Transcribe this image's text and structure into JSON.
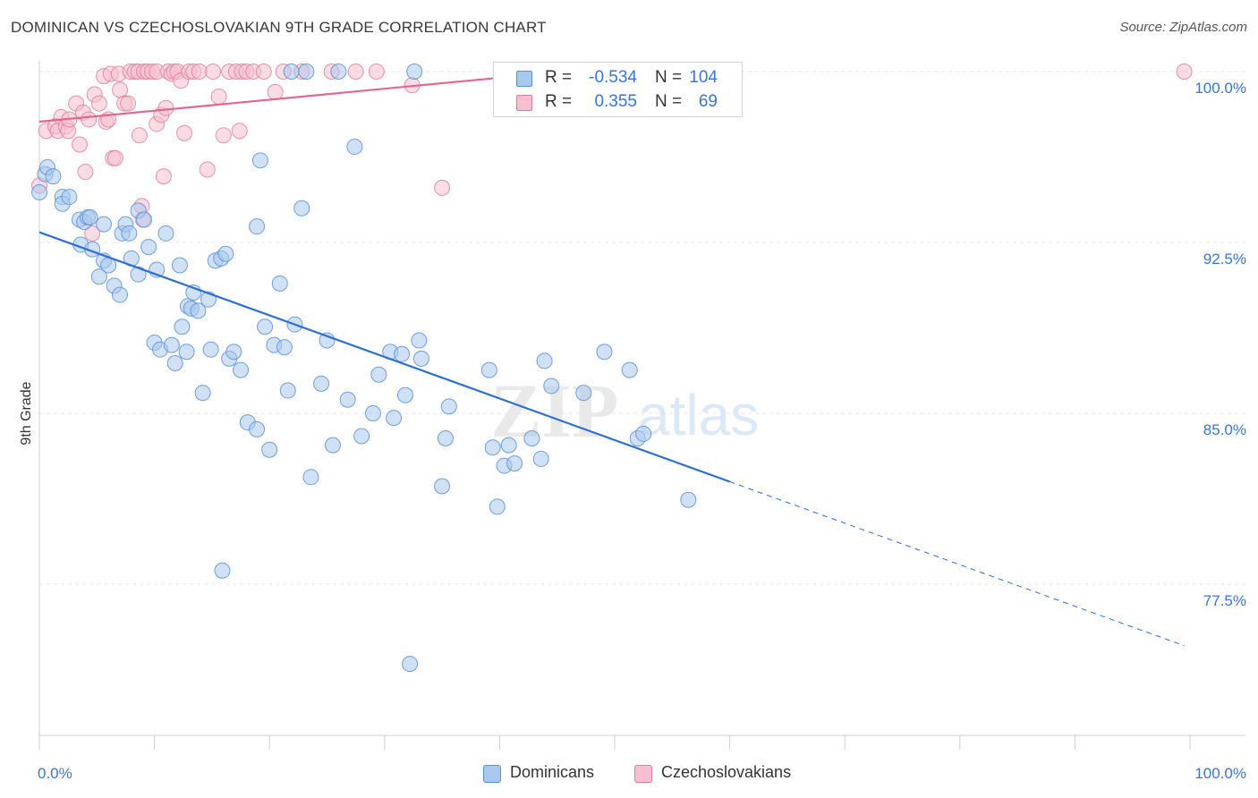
{
  "title": "DOMINICAN VS CZECHOSLOVAKIAN 9TH GRADE CORRELATION CHART",
  "source": "Source: ZipAtlas.com",
  "watermark": {
    "zip": "ZIP",
    "atlas": "atlas"
  },
  "legend": {
    "rows": [
      {
        "r_label": "R =",
        "r_value": "-0.534",
        "n_label": "N =",
        "n_value": "104",
        "color": "#aac8ee",
        "border": "#5a8fd8"
      },
      {
        "r_label": "R =",
        "r_value": "0.355",
        "n_label": "N =",
        "n_value": "69",
        "color": "#f7bfd0",
        "border": "#e07a9a"
      }
    ]
  },
  "bottom_legend": [
    {
      "label": "Dominicans",
      "color": "#aac8ee",
      "border": "#5a8fd8"
    },
    {
      "label": "Czechoslovakians",
      "color": "#f7bfd0",
      "border": "#e07a9a"
    }
  ],
  "chart_data": {
    "type": "scatter",
    "title": "DOMINICAN VS CZECHOSLOVAKIAN 9TH GRADE CORRELATION CHART",
    "xlabel": "",
    "ylabel": "9th Grade",
    "xlim": [
      0,
      100
    ],
    "ylim": [
      70.5,
      101
    ],
    "x_tick_labels": [
      "0.0%",
      "100.0%"
    ],
    "y_ticks": [
      100.0,
      92.5,
      85.0,
      77.5
    ],
    "y_tick_labels": [
      "100.0%",
      "92.5%",
      "85.0%",
      "77.5%"
    ],
    "grid": true,
    "legend_position": "top-center",
    "series": [
      {
        "name": "Dominicans",
        "color": "#5a8fd8",
        "fill": "#aac8ee",
        "trend": {
          "x0": 0,
          "y0": 92.95,
          "x1": 60,
          "y1": 82.0,
          "dash_to_x": 99.5,
          "dash_to_y": 74.8
        },
        "points": [
          [
            0,
            94.7
          ],
          [
            0.5,
            95.5
          ],
          [
            0.7,
            95.8
          ],
          [
            1.2,
            95.4
          ],
          [
            2,
            94.5
          ],
          [
            2,
            94.2
          ],
          [
            2.6,
            94.5
          ],
          [
            3.5,
            93.5
          ],
          [
            3.9,
            93.4
          ],
          [
            4.2,
            93.6
          ],
          [
            4.4,
            93.6
          ],
          [
            5.6,
            93.3
          ],
          [
            3.6,
            92.4
          ],
          [
            4.6,
            92.2
          ],
          [
            5.6,
            91.7
          ],
          [
            6,
            91.5
          ],
          [
            5.2,
            91.0
          ],
          [
            6.5,
            90.6
          ],
          [
            7,
            90.2
          ],
          [
            7.2,
            92.9
          ],
          [
            7.5,
            93.3
          ],
          [
            7.8,
            92.9
          ],
          [
            8,
            91.8
          ],
          [
            8.6,
            93.9
          ],
          [
            8.6,
            91.1
          ],
          [
            9.1,
            93.5
          ],
          [
            9.5,
            92.3
          ],
          [
            10,
            88.1
          ],
          [
            10.2,
            91.3
          ],
          [
            10.5,
            87.8
          ],
          [
            11,
            92.9
          ],
          [
            11.5,
            88.0
          ],
          [
            11.8,
            87.2
          ],
          [
            12.4,
            88.8
          ],
          [
            12.8,
            87.7
          ],
          [
            12.2,
            91.5
          ],
          [
            12.9,
            89.7
          ],
          [
            13.2,
            89.6
          ],
          [
            13.4,
            90.3
          ],
          [
            13.8,
            89.5
          ],
          [
            14.2,
            85.9
          ],
          [
            14.7,
            90.0
          ],
          [
            14.9,
            87.8
          ],
          [
            15.3,
            91.7
          ],
          [
            15.8,
            91.8
          ],
          [
            16.2,
            92.0
          ],
          [
            16.5,
            87.4
          ],
          [
            16.9,
            87.7
          ],
          [
            17.5,
            86.9
          ],
          [
            18.1,
            84.6
          ],
          [
            18.9,
            84.3
          ],
          [
            18.9,
            93.2
          ],
          [
            19.2,
            96.1
          ],
          [
            19.6,
            88.8
          ],
          [
            20,
            83.4
          ],
          [
            20.4,
            88.0
          ],
          [
            20.9,
            90.7
          ],
          [
            21.3,
            87.9
          ],
          [
            21.6,
            86.0
          ],
          [
            22.2,
            88.9
          ],
          [
            21.9,
            100.0
          ],
          [
            22.8,
            94.0
          ],
          [
            23.2,
            100.0
          ],
          [
            23.6,
            82.2
          ],
          [
            24.5,
            86.3
          ],
          [
            25,
            88.2
          ],
          [
            25.5,
            83.6
          ],
          [
            26,
            100.0
          ],
          [
            26.8,
            85.6
          ],
          [
            27.4,
            96.7
          ],
          [
            28,
            84.0
          ],
          [
            29,
            85.0
          ],
          [
            29.5,
            86.7
          ],
          [
            30.5,
            87.7
          ],
          [
            30.8,
            84.8
          ],
          [
            31.5,
            87.6
          ],
          [
            31.8,
            85.8
          ],
          [
            32.2,
            74.0
          ],
          [
            32.6,
            100.0
          ],
          [
            33,
            88.2
          ],
          [
            33.2,
            87.4
          ],
          [
            35,
            81.8
          ],
          [
            35.3,
            83.9
          ],
          [
            35.6,
            85.3
          ],
          [
            39.1,
            86.9
          ],
          [
            39.4,
            83.5
          ],
          [
            39.8,
            80.9
          ],
          [
            40.4,
            82.7
          ],
          [
            40.8,
            83.6
          ],
          [
            41.3,
            82.8
          ],
          [
            42.8,
            83.9
          ],
          [
            43.6,
            83.0
          ],
          [
            43.9,
            87.3
          ],
          [
            44.5,
            86.2
          ],
          [
            45.3,
            100.0
          ],
          [
            47.3,
            85.9
          ],
          [
            49.1,
            87.7
          ],
          [
            51.3,
            86.9
          ],
          [
            52,
            83.9
          ],
          [
            52.5,
            84.1
          ],
          [
            56.4,
            81.2
          ],
          [
            15.9,
            78.1
          ],
          [
            46,
            100.0
          ],
          [
            44,
            100.0
          ]
        ]
      },
      {
        "name": "Czechoslovakians",
        "color": "#e07a9a",
        "fill": "#f7bfd0",
        "trend": {
          "x0": 0,
          "y0": 97.8,
          "x1": 43.5,
          "y1": 99.9
        },
        "points": [
          [
            0,
            95.0
          ],
          [
            0.6,
            97.4
          ],
          [
            1.4,
            97.6
          ],
          [
            1.6,
            97.4
          ],
          [
            1.9,
            98.0
          ],
          [
            2.3,
            97.6
          ],
          [
            2.5,
            97.4
          ],
          [
            2.6,
            97.9
          ],
          [
            3.2,
            98.6
          ],
          [
            3.5,
            96.8
          ],
          [
            3.8,
            98.2
          ],
          [
            4,
            95.6
          ],
          [
            4.3,
            97.9
          ],
          [
            4.6,
            92.9
          ],
          [
            4.8,
            99.0
          ],
          [
            5.2,
            98.6
          ],
          [
            5.6,
            99.8
          ],
          [
            5.8,
            97.8
          ],
          [
            6,
            97.9
          ],
          [
            6.2,
            99.9
          ],
          [
            6.4,
            96.2
          ],
          [
            6.6,
            96.2
          ],
          [
            6.9,
            99.9
          ],
          [
            7,
            99.2
          ],
          [
            7.4,
            98.6
          ],
          [
            7.7,
            98.6
          ],
          [
            7.9,
            100.0
          ],
          [
            8.3,
            100.0
          ],
          [
            8.6,
            100.0
          ],
          [
            8.7,
            97.2
          ],
          [
            8.9,
            94.1
          ],
          [
            9,
            93.5
          ],
          [
            9.1,
            100.0
          ],
          [
            9.4,
            100.0
          ],
          [
            9.8,
            100.0
          ],
          [
            10.2,
            100.0
          ],
          [
            10.2,
            97.7
          ],
          [
            10.6,
            98.1
          ],
          [
            10.8,
            95.4
          ],
          [
            11,
            98.4
          ],
          [
            11.2,
            100.0
          ],
          [
            11.5,
            99.9
          ],
          [
            11.7,
            100.0
          ],
          [
            12,
            100.0
          ],
          [
            12.3,
            99.6
          ],
          [
            12.6,
            97.3
          ],
          [
            13,
            100.0
          ],
          [
            13.4,
            100.0
          ],
          [
            13.9,
            100.0
          ],
          [
            14.6,
            95.7
          ],
          [
            15.1,
            100.0
          ],
          [
            15.6,
            98.9
          ],
          [
            16,
            97.2
          ],
          [
            16.5,
            100.0
          ],
          [
            17.1,
            100.0
          ],
          [
            17.4,
            97.4
          ],
          [
            17.6,
            100.0
          ],
          [
            18,
            100.0
          ],
          [
            18.6,
            100.0
          ],
          [
            19.5,
            100.0
          ],
          [
            20.5,
            99.1
          ],
          [
            21.2,
            100.0
          ],
          [
            22.8,
            100.0
          ],
          [
            25.4,
            100.0
          ],
          [
            27.5,
            100.0
          ],
          [
            29.3,
            100.0
          ],
          [
            32.4,
            99.4
          ],
          [
            35,
            94.9
          ],
          [
            99.5,
            100.0
          ]
        ]
      }
    ]
  }
}
